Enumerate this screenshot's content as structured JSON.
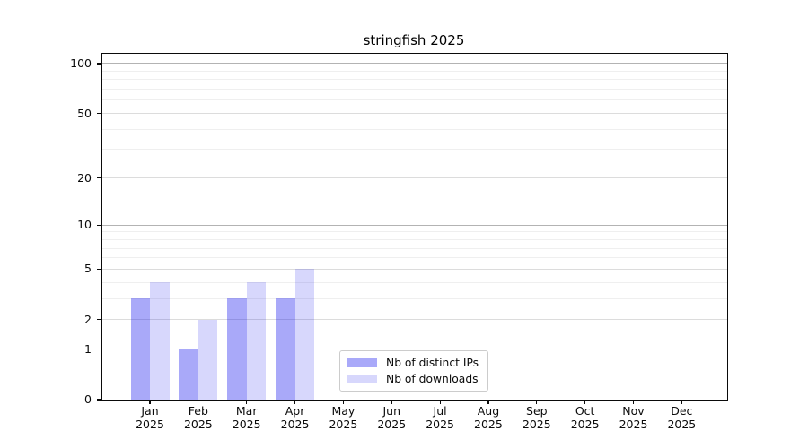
{
  "chart_data": {
    "type": "bar",
    "title": "stringfish 2025",
    "categories": [
      "Jan 2025",
      "Feb 2025",
      "Mar 2025",
      "Apr 2025",
      "May 2025",
      "Jun 2025",
      "Jul 2025",
      "Aug 2025",
      "Sep 2025",
      "Oct 2025",
      "Nov 2025",
      "Dec 2025"
    ],
    "x_axis": {
      "months": [
        "Jan",
        "Feb",
        "Mar",
        "Apr",
        "May",
        "Jun",
        "Jul",
        "Aug",
        "Sep",
        "Oct",
        "Nov",
        "Dec"
      ],
      "year": "2025"
    },
    "series": [
      {
        "name": "Nb of distinct IPs",
        "color": "rgba(8,8,238,0.35)",
        "color_on_white": "#a8a8f9",
        "values": [
          3,
          1,
          3,
          3,
          0,
          0,
          0,
          0,
          0,
          0,
          0,
          0
        ]
      },
      {
        "name": "Nb of downloads",
        "color": "rgba(8,8,238,0.16)",
        "color_on_white": "#d7d7fc",
        "values": [
          4,
          2,
          4,
          5,
          0,
          0,
          0,
          0,
          0,
          0,
          0,
          0
        ]
      }
    ],
    "y_axis": {
      "scale": "log1p",
      "ticks": [
        0,
        1,
        2,
        5,
        10,
        20,
        50,
        100
      ],
      "minor_ticks": [
        3,
        4,
        6,
        7,
        8,
        9,
        30,
        40,
        60,
        70,
        80,
        90
      ],
      "decade_ticks": [
        1,
        10,
        100
      ],
      "ylim": [
        0,
        114
      ]
    },
    "grid": "on",
    "legend_position": "lower-center",
    "colors": {
      "grid_decade": "#b3b3b3",
      "grid_major": "#dcdcdc",
      "grid_minor": "#efefef",
      "spine": "#0a0a0a",
      "background": "#ffffff"
    }
  },
  "legend": {
    "items": [
      {
        "label": "Nb of distinct IPs"
      },
      {
        "label": "Nb of downloads"
      }
    ]
  }
}
